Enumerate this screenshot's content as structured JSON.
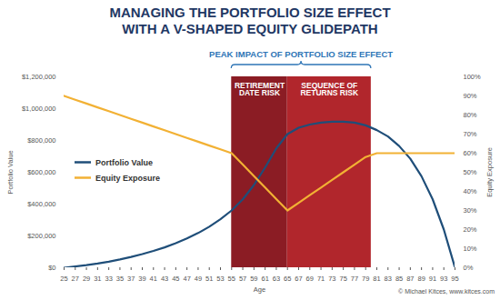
{
  "chart_data": {
    "type": "line",
    "title": "MANAGING THE PORTFOLIO SIZE EFFECT\nWITH A V-SHAPED EQUITY GLIDEPATH",
    "xlabel": "Age",
    "ylabel": "Portfolio Value",
    "y2label": "Equity Exposure",
    "caption": "© Michael Kitces, www.kitces.com",
    "x": [
      25,
      27,
      29,
      31,
      33,
      35,
      37,
      39,
      41,
      43,
      45,
      47,
      49,
      51,
      53,
      55,
      57,
      59,
      61,
      63,
      65,
      67,
      69,
      71,
      73,
      75,
      77,
      79,
      81,
      83,
      85,
      87,
      89,
      91,
      93,
      95
    ],
    "series": [
      {
        "name": "Portfolio Value",
        "color": "#1f4e79",
        "values": [
          0,
          8000,
          16000,
          26000,
          38000,
          52000,
          68000,
          86000,
          106000,
          128000,
          154000,
          184000,
          218000,
          258000,
          305000,
          360000,
          430000,
          520000,
          630000,
          750000,
          840000,
          880000,
          900000,
          912000,
          918000,
          918000,
          912000,
          895000,
          865000,
          825000,
          765000,
          685000,
          575000,
          430000,
          240000,
          0
        ]
      },
      {
        "name": "Equity Exposure",
        "color": "#f2b134",
        "axis": "y2",
        "values": [
          90,
          88,
          86,
          84,
          82,
          80,
          78,
          76,
          74,
          72,
          70,
          68,
          66,
          64,
          62,
          60,
          54,
          48,
          42,
          36,
          30,
          34,
          38,
          42,
          46,
          50,
          54,
          58,
          60,
          60,
          60,
          60,
          60,
          60,
          60,
          60
        ]
      }
    ],
    "xlim": [
      25,
      95
    ],
    "xticks": [
      25,
      27,
      29,
      31,
      33,
      35,
      37,
      39,
      41,
      43,
      45,
      47,
      49,
      51,
      53,
      55,
      57,
      59,
      61,
      63,
      65,
      67,
      69,
      71,
      73,
      75,
      77,
      79,
      81,
      83,
      85,
      87,
      89,
      91,
      93,
      95
    ],
    "ylim": [
      0,
      1200000
    ],
    "yticks": [
      {
        "value": 0,
        "label": "$0"
      },
      {
        "value": 200000,
        "label": "$200,000"
      },
      {
        "value": 400000,
        "label": "$400,000"
      },
      {
        "value": 600000,
        "label": "$600,000"
      },
      {
        "value": 800000,
        "label": "$800,000"
      },
      {
        "value": 1000000,
        "label": "$1,000,000"
      },
      {
        "value": 1200000,
        "label": "$1,200,000"
      }
    ],
    "y2lim": [
      0,
      100
    ],
    "y2ticks": [
      {
        "value": 0,
        "label": "0%"
      },
      {
        "value": 10,
        "label": "10%"
      },
      {
        "value": 20,
        "label": "20%"
      },
      {
        "value": 30,
        "label": "30%"
      },
      {
        "value": 40,
        "label": "40%"
      },
      {
        "value": 50,
        "label": "50%"
      },
      {
        "value": 60,
        "label": "60%"
      },
      {
        "value": 70,
        "label": "70%"
      },
      {
        "value": 80,
        "label": "80%"
      },
      {
        "value": 90,
        "label": "90%"
      },
      {
        "value": 100,
        "label": "100%"
      }
    ],
    "regions": [
      {
        "label": "RETIREMENT DATE RISK",
        "from": 55,
        "to": 65,
        "color": "#8b1c24"
      },
      {
        "label": "SEQUENCE OF RETURNS RISK",
        "from": 65,
        "to": 80,
        "color": "#b1262c"
      }
    ],
    "annotations": [
      {
        "text": "PEAK IMPACT OF PORTFOLIO SIZE EFFECT",
        "from": 55,
        "to": 80,
        "color": "#2e75b6"
      }
    ],
    "legend": "left",
    "grid": false
  }
}
